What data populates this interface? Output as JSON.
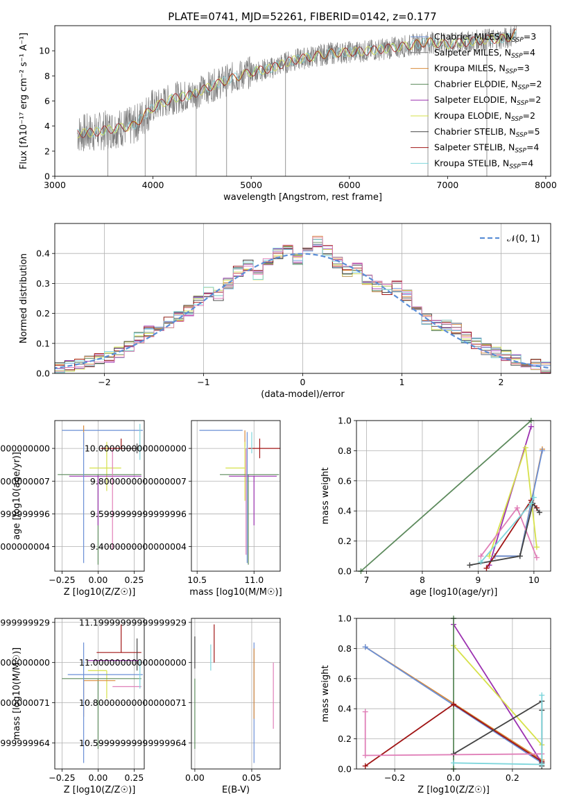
{
  "figure_title": "PLATE=0741, MJD=52261, FIBERID=0142, z=0.177",
  "colors": {
    "Chabrier MILES": "#6a8fd6",
    "Salpeter MILES": "#7d7d7d",
    "Kroupa MILES": "#d98b3a",
    "Chabrier ELODIE": "#5c8a5c",
    "Salpeter ELODIE": "#9b30b0",
    "Kroupa ELODIE": "#d6e14a",
    "Chabrier STELIB": "#444444",
    "Salpeter STELIB": "#a01515",
    "Kroupa STELIB": "#7fd6dc",
    "pink": "#e07fb8",
    "normal_curve": "#5b8ed6"
  },
  "chart_data": [
    {
      "id": "spectrum",
      "type": "line",
      "title": "PLATE=0741, MJD=52261, FIBERID=0142, z=0.177",
      "xlabel": "wavelength [Angstrom, rest frame]",
      "ylabel": "Flux [fλ10⁻¹⁷ erg cm⁻² s⁻¹ A⁻¹]",
      "xlim": [
        3000,
        8050
      ],
      "ylim": [
        0,
        12
      ],
      "xticks": [
        3000,
        4000,
        5000,
        6000,
        7000,
        8000
      ],
      "yticks": [
        0,
        2,
        4,
        6,
        8,
        10
      ],
      "legend_position": "right",
      "legend": [
        {
          "name": "Chabrier MILES",
          "nssp": "3"
        },
        {
          "name": "Salpeter MILES",
          "nssp": "4"
        },
        {
          "name": "Kroupa MILES",
          "nssp": "3"
        },
        {
          "name": "Chabrier ELODIE",
          "nssp": "2"
        },
        {
          "name": "Salpeter ELODIE",
          "nssp": "2"
        },
        {
          "name": "Kroupa ELODIE",
          "nssp": "2"
        },
        {
          "name": "Chabrier STELIB",
          "nssp": "5"
        },
        {
          "name": "Salpeter STELIB",
          "nssp": "4"
        },
        {
          "name": "Kroupa STELIB",
          "nssp": "4"
        }
      ],
      "continuum": {
        "x": [
          3230,
          3400,
          3600,
          3800,
          4000,
          4200,
          4400,
          4600,
          4800,
          5000,
          5200,
          5400,
          5600,
          5800,
          6000,
          6200,
          6400,
          6600,
          6800,
          7000,
          7200,
          7400,
          7600,
          7700
        ],
        "y": [
          3.4,
          3.5,
          3.8,
          4.0,
          5.5,
          6.2,
          6.5,
          7.2,
          7.8,
          8.3,
          8.6,
          9.2,
          9.5,
          9.8,
          9.9,
          10.0,
          10.2,
          10.4,
          10.7,
          10.5,
          10.7,
          10.9,
          11.0,
          11.4
        ]
      }
    },
    {
      "id": "residual_histogram",
      "type": "bar",
      "xlabel": "(data-model)/error",
      "ylabel": "Normed distribution",
      "xlim": [
        -2.5,
        2.5
      ],
      "ylim": [
        0,
        0.5
      ],
      "xticks": [
        -2,
        -1,
        0,
        1,
        2
      ],
      "yticks": [
        0.0,
        0.1,
        0.2,
        0.3,
        0.4
      ],
      "grid": true,
      "legend_position": "top-right",
      "legend_label": "𝒩(0, 1)",
      "bin_edges": [
        -2.5,
        -2.4,
        -2.3,
        -2.2,
        -2.1,
        -2.0,
        -1.9,
        -1.8,
        -1.7,
        -1.6,
        -1.5,
        -1.4,
        -1.3,
        -1.2,
        -1.1,
        -1.0,
        -0.9,
        -0.8,
        -0.7,
        -0.6,
        -0.5,
        -0.4,
        -0.3,
        -0.2,
        -0.1,
        0.0,
        0.1,
        0.2,
        0.3,
        0.4,
        0.5,
        0.6,
        0.7,
        0.8,
        0.9,
        1.0,
        1.1,
        1.2,
        1.3,
        1.4,
        1.5,
        1.6,
        1.7,
        1.8,
        1.9,
        2.0,
        2.1,
        2.2,
        2.3,
        2.4,
        2.5
      ],
      "histogram_values": [
        0.02,
        0.025,
        0.03,
        0.04,
        0.05,
        0.055,
        0.07,
        0.09,
        0.12,
        0.14,
        0.16,
        0.17,
        0.19,
        0.21,
        0.24,
        0.27,
        0.26,
        0.3,
        0.34,
        0.36,
        0.33,
        0.38,
        0.4,
        0.42,
        0.38,
        0.4,
        0.44,
        0.41,
        0.37,
        0.34,
        0.35,
        0.31,
        0.29,
        0.28,
        0.29,
        0.26,
        0.21,
        0.18,
        0.16,
        0.16,
        0.15,
        0.12,
        0.1,
        0.08,
        0.07,
        0.06,
        0.045,
        0.035,
        0.03,
        0.02
      ],
      "normal_curve": "N(0,1)"
    },
    {
      "id": "age_vs_Z",
      "type": "scatter",
      "xlabel": "Z [log10(Z/Z☉)]",
      "ylabel": "age [log10(age/yr)]",
      "xlim": [
        -0.3,
        0.32
      ],
      "ylim": [
        9.25,
        10.17
      ],
      "xticks": [
        -0.25,
        0.0,
        0.25
      ],
      "yticks": [
        9.4,
        9.6,
        9.8,
        10.0
      ],
      "grid": true,
      "points": [
        {
          "series": "Chabrier MILES",
          "x": 0.04,
          "xerr": [
            0.29,
            0.27
          ],
          "y": 10.11,
          "yerr": [
            0.0,
            0.0
          ]
        },
        {
          "series": "Kroupa MILES",
          "x": -0.1,
          "xerr": [
            0.0,
            0.0
          ],
          "y": 10.11,
          "yerr": [
            0.1,
            0.03
          ]
        },
        {
          "series": "Salpeter STELIB",
          "x": 0.16,
          "xerr": [
            0.14,
            0.1
          ],
          "y": 10.0,
          "yerr": [
            0.0,
            0.06
          ]
        },
        {
          "series": "Chabrier STELIB",
          "x": 0.27,
          "xerr": [
            0.1,
            0.0
          ],
          "y": 10.0,
          "yerr": [
            0.03,
            0.03
          ]
        },
        {
          "series": "Kroupa ELODIE",
          "x": 0.06,
          "xerr": [
            0.12,
            0.1
          ],
          "y": 9.88,
          "yerr": [
            0.14,
            0.16
          ]
        },
        {
          "series": "Chabrier ELODIE",
          "x": 0.0,
          "xerr": [
            0.28,
            0.3
          ],
          "y": 9.84,
          "yerr": [
            0.55,
            0.0
          ]
        },
        {
          "series": "Salpeter ELODIE",
          "x": 0.0,
          "xerr": [
            0.2,
            0.3
          ],
          "y": 9.83,
          "yerr": [
            0.3,
            0.0
          ]
        },
        {
          "series": "Chabrier MILES",
          "x": -0.1,
          "xerr": [
            0.0,
            0.0
          ],
          "y": 9.7,
          "yerr": [
            0.4,
            0.4
          ]
        },
        {
          "series": "pink",
          "x": 0.1,
          "xerr": [
            0.0,
            0.0
          ],
          "y": 9.7,
          "yerr": [
            0.32,
            0.3
          ]
        },
        {
          "series": "Kroupa STELIB",
          "x": 0.29,
          "xerr": [
            0.0,
            0.0
          ],
          "y": 10.05,
          "yerr": [
            0.12,
            0.1
          ]
        }
      ]
    },
    {
      "id": "age_vs_mass",
      "type": "scatter",
      "xlabel": "mass [log10(M/M☉)]",
      "ylabel": "",
      "xlim": [
        10.45,
        11.23
      ],
      "ylim": [
        9.25,
        10.17
      ],
      "xticks": [
        10.5,
        11.0
      ],
      "yticks": [
        9.4,
        9.6,
        9.8,
        10.0
      ],
      "grid": true,
      "points": [
        {
          "series": "Chabrier MILES",
          "x": 10.9,
          "xerr": [
            0.38,
            0.0
          ],
          "y": 10.11,
          "yerr": [
            0.0,
            0.0
          ]
        },
        {
          "series": "Kroupa MILES",
          "x": 10.92,
          "xerr": [
            0.0,
            0.0
          ],
          "y": 10.11,
          "yerr": [
            0.1,
            0.0
          ]
        },
        {
          "series": "Salpeter STELIB",
          "x": 11.05,
          "xerr": [
            0.1,
            0.18
          ],
          "y": 10.0,
          "yerr": [
            0.06,
            0.06
          ]
        },
        {
          "series": "Kroupa ELODIE",
          "x": 10.92,
          "xerr": [
            0.17,
            0.0
          ],
          "y": 9.88,
          "yerr": [
            0.2,
            0.16
          ]
        },
        {
          "series": "Chabrier ELODIE",
          "x": 10.95,
          "xerr": [
            0.25,
            0.27
          ],
          "y": 9.84,
          "yerr": [
            0.55,
            0.0
          ]
        },
        {
          "series": "Salpeter ELODIE",
          "x": 11.0,
          "xerr": [
            0.22,
            0.2
          ],
          "y": 9.83,
          "yerr": [
            0.3,
            0.0
          ]
        },
        {
          "series": "Salpeter MILES",
          "x": 10.95,
          "xerr": [
            0.0,
            0.0
          ],
          "y": 9.78,
          "yerr": [
            0.0,
            0.0
          ]
        },
        {
          "series": "pink",
          "x": 10.93,
          "xerr": [
            0.0,
            0.0
          ],
          "y": 9.7,
          "yerr": [
            0.35,
            0.3
          ]
        },
        {
          "series": "Chabrier MILES",
          "x": 10.94,
          "xerr": [
            0.0,
            0.0
          ],
          "y": 9.7,
          "yerr": [
            0.4,
            0.4
          ]
        },
        {
          "series": "Kroupa STELIB",
          "x": 10.98,
          "xerr": [
            0.0,
            0.0
          ],
          "y": 10.05,
          "yerr": [
            0.08,
            0.05
          ]
        }
      ]
    },
    {
      "id": "mass_weight_vs_age",
      "type": "line",
      "xlabel": "age [log10(age/yr)]",
      "ylabel": "mass weight",
      "xlim": [
        6.82,
        10.3
      ],
      "ylim": [
        0.0,
        1.0
      ],
      "xticks": [
        7,
        8,
        9,
        10
      ],
      "yticks": [
        0.0,
        0.2,
        0.4,
        0.6,
        0.8,
        1.0
      ],
      "grid": true,
      "series": [
        {
          "name": "Chabrier ELODIE",
          "x": [
            6.9,
            9.95
          ],
          "y": [
            0.0,
            1.0
          ]
        },
        {
          "name": "Salpeter ELODIE",
          "x": [
            9.2,
            9.95
          ],
          "y": [
            0.04,
            0.96
          ]
        },
        {
          "name": "Kroupa ELODIE",
          "x": [
            9.2,
            9.85,
            10.05
          ],
          "y": [
            0.1,
            0.82,
            0.16
          ]
        },
        {
          "name": "Kroupa MILES",
          "x": [
            9.3,
            9.75,
            10.15
          ],
          "y": [
            0.1,
            0.1,
            0.81
          ]
        },
        {
          "name": "Chabrier MILES",
          "x": [
            9.3,
            9.75,
            10.15
          ],
          "y": [
            0.1,
            0.1,
            0.8
          ]
        },
        {
          "name": "pink",
          "x": [
            9.05,
            9.7,
            10.05
          ],
          "y": [
            0.1,
            0.42,
            0.09
          ]
        },
        {
          "name": "Salpeter STELIB",
          "x": [
            9.15,
            9.95,
            10.05
          ],
          "y": [
            0.02,
            0.47,
            0.42
          ]
        },
        {
          "name": "Chabrier STELIB",
          "x": [
            8.85,
            9.75,
            9.98,
            10.1
          ],
          "y": [
            0.04,
            0.1,
            0.45,
            0.39
          ]
        },
        {
          "name": "Kroupa STELIB",
          "x": [
            9.05,
            9.95,
            10.0
          ],
          "y": [
            0.06,
            0.45,
            0.49
          ]
        }
      ]
    },
    {
      "id": "mass_vs_Z",
      "type": "scatter",
      "xlabel": "Z [log10(Z/Z☉)]",
      "ylabel": "mass [log10(M/M☉)]",
      "xlim": [
        -0.3,
        0.32
      ],
      "ylim": [
        10.47,
        11.22
      ],
      "xticks": [
        -0.25,
        0.0,
        0.25
      ],
      "yticks": [
        10.6,
        10.8,
        11.0,
        11.2
      ],
      "grid": true,
      "points": [
        {
          "series": "Salpeter STELIB",
          "x": 0.16,
          "xerr": [
            0.17,
            0.14
          ],
          "y": 11.05,
          "yerr": [
            0.0,
            0.14
          ]
        },
        {
          "series": "Chabrier STELIB",
          "x": 0.27,
          "xerr": [
            0.0,
            0.0
          ],
          "y": 11.04,
          "yerr": [
            0.08,
            0.08
          ]
        },
        {
          "series": "Salpeter ELODIE",
          "x": 0.05,
          "xerr": [
            0.12,
            0.23
          ],
          "y": 11.01,
          "yerr": [
            0.0,
            0.0
          ]
        },
        {
          "series": "Kroupa ELODIE",
          "x": 0.06,
          "xerr": [
            0.13,
            0.0
          ],
          "y": 10.96,
          "yerr": [
            0.14,
            0.0
          ]
        },
        {
          "series": "Chabrier MILES",
          "x": 0.04,
          "xerr": [
            0.25,
            0.27
          ],
          "y": 10.94,
          "yerr": [
            0.0,
            0.0
          ]
        },
        {
          "series": "Chabrier ELODIE",
          "x": 0.0,
          "xerr": [
            0.25,
            0.3
          ],
          "y": 10.92,
          "yerr": [
            0.35,
            0.0
          ]
        },
        {
          "series": "Kroupa MILES",
          "x": -0.1,
          "xerr": [
            0.0,
            0.22
          ],
          "y": 10.91,
          "yerr": [
            0.18,
            0.0
          ]
        },
        {
          "series": "pink",
          "x": 0.1,
          "xerr": [
            0.0,
            0.2
          ],
          "y": 10.88,
          "yerr": [
            0.0,
            0.0
          ]
        },
        {
          "series": "Chabrier MILES",
          "x": -0.1,
          "xerr": [
            0.0,
            0.0
          ],
          "y": 10.85,
          "yerr": [
            0.35,
            0.25
          ]
        },
        {
          "series": "Kroupa STELIB",
          "x": 0.29,
          "xerr": [
            0.0,
            0.0
          ],
          "y": 10.95,
          "yerr": [
            0.08,
            0.06
          ]
        }
      ]
    },
    {
      "id": "mass_vs_ebv",
      "type": "scatter",
      "xlabel": "E(B-V)",
      "ylabel": "",
      "xlim": [
        -0.003,
        0.075
      ],
      "ylim": [
        10.47,
        11.22
      ],
      "xticks": [
        0.0,
        0.05
      ],
      "yticks": [
        10.6,
        10.8,
        11.0,
        11.2
      ],
      "grid": true,
      "points": [
        {
          "series": "Chabrier STELIB",
          "x": 0.0,
          "y": 11.05,
          "yerr": [
            0.08,
            0.08
          ]
        },
        {
          "series": "Chabrier ELODIE",
          "x": 0.0,
          "y": 10.92,
          "yerr": [
            0.35,
            0.0
          ]
        },
        {
          "series": "Salpeter STELIB",
          "x": 0.017,
          "y": 11.1,
          "yerr": [
            0.1,
            0.09
          ]
        },
        {
          "series": "Kroupa STELIB",
          "x": 0.014,
          "y": 11.02,
          "yerr": [
            0.06,
            0.07
          ]
        },
        {
          "series": "Chabrier MILES",
          "x": 0.052,
          "y": 10.8,
          "yerr": [
            0.3,
            0.3
          ]
        },
        {
          "series": "Kroupa MILES",
          "x": 0.052,
          "y": 10.92,
          "yerr": [
            0.2,
            0.15
          ]
        },
        {
          "series": "pink",
          "x": 0.069,
          "y": 10.84,
          "yerr": [
            0.17,
            0.16
          ]
        }
      ]
    },
    {
      "id": "mass_weight_vs_Z",
      "type": "line",
      "xlabel": "Z [log10(Z/Z☉)]",
      "ylabel": "mass weight",
      "xlim": [
        -0.33,
        0.33
      ],
      "ylim": [
        0.0,
        1.0
      ],
      "xticks": [
        -0.2,
        0.0,
        0.2
      ],
      "yticks": [
        0.0,
        0.2,
        0.4,
        0.6,
        0.8,
        1.0
      ],
      "grid": true,
      "series": [
        {
          "name": "Kroupa MILES",
          "x": [
            -0.3,
            0.3
          ],
          "y": [
            0.81,
            0.06
          ]
        },
        {
          "name": "Chabrier MILES",
          "x": [
            -0.3,
            0.3
          ],
          "y": [
            0.81,
            0.04
          ]
        },
        {
          "name": "Salpeter ELODIE",
          "x": [
            0.0,
            0.3
          ],
          "y": [
            0.96,
            0.04
          ]
        },
        {
          "name": "Kroupa ELODIE",
          "x": [
            0.0,
            0.3
          ],
          "y": [
            0.82,
            0.16
          ]
        },
        {
          "name": "Chabrier ELODIE",
          "x": [
            0.0,
            0.0
          ],
          "y": [
            0.0,
            1.0
          ]
        },
        {
          "name": "Salpeter STELIB",
          "x": [
            -0.3,
            0.0,
            0.3
          ],
          "y": [
            0.02,
            0.43,
            0.05
          ]
        },
        {
          "name": "Chabrier STELIB",
          "x": [
            0.0,
            0.3,
            0.3,
            0.3,
            0.3
          ],
          "y": [
            0.1,
            0.45,
            0.39,
            0.04,
            0.02
          ]
        },
        {
          "name": "pink",
          "x": [
            -0.3,
            -0.3,
            0.3
          ],
          "y": [
            0.38,
            0.09,
            0.1
          ]
        },
        {
          "name": "Kroupa STELIB",
          "x": [
            0.0,
            0.3,
            0.3
          ],
          "y": [
            0.04,
            0.03,
            0.49
          ]
        }
      ]
    }
  ]
}
